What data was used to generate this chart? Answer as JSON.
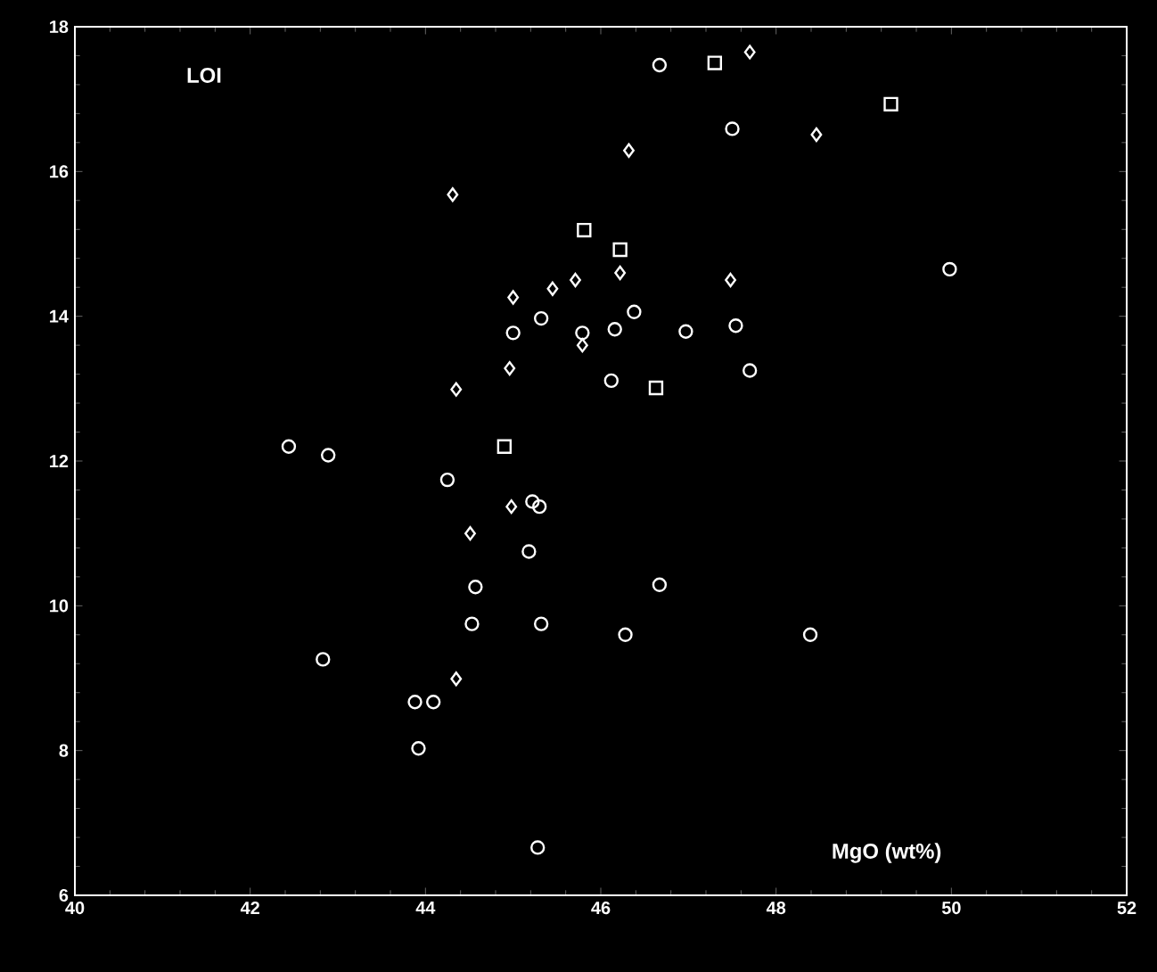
{
  "chart_data": {
    "type": "scatter",
    "xlabel": "MgO (wt%)",
    "ylabel": "LOI",
    "xlim": [
      40,
      52
    ],
    "ylim": [
      6,
      18
    ],
    "xticks": [
      40,
      42,
      44,
      46,
      48,
      50,
      52
    ],
    "yticks": [
      6,
      8,
      10,
      12,
      14,
      16,
      18
    ],
    "grid": false,
    "series": [
      {
        "color": "#ffffff",
        "marker": "circle",
        "x": [
          42.44,
          42.89,
          42.83,
          44.25,
          43.88,
          44.09,
          43.92,
          44.53,
          44.57,
          45.22,
          45.3,
          45.18,
          45.32,
          45.28,
          46.28,
          46.67,
          46.67,
          47.5,
          47.54,
          47.7,
          49.98,
          48.39,
          46.97,
          46.12,
          46.16,
          45.79,
          45.0,
          45.32,
          46.38
        ],
        "values": [
          12.2,
          12.08,
          9.26,
          11.74,
          8.67,
          8.67,
          8.03,
          9.75,
          10.26,
          11.44,
          11.37,
          10.75,
          9.75,
          6.66,
          9.6,
          10.29,
          17.47,
          16.59,
          13.87,
          13.25,
          14.65,
          9.6,
          13.79,
          13.11,
          13.82,
          13.77,
          13.77,
          13.97,
          14.06
        ]
      },
      {
        "color": "#ffffff",
        "marker": "diamond",
        "x": [
          44.31,
          44.35,
          44.96,
          44.51,
          44.35,
          44.98,
          45.71,
          45.45,
          46.22,
          47.48,
          46.32,
          47.7,
          48.46,
          45.79,
          45.0
        ],
        "values": [
          15.68,
          12.99,
          13.28,
          11.0,
          8.99,
          11.37,
          14.5,
          14.38,
          14.6,
          14.5,
          16.29,
          17.65,
          16.51,
          13.6,
          14.26
        ]
      },
      {
        "color": "#ffffff",
        "marker": "square",
        "x": [
          47.3,
          49.31,
          45.81,
          46.22,
          44.9,
          46.63
        ],
        "values": [
          17.5,
          16.93,
          15.19,
          14.92,
          12.2,
          13.01
        ]
      }
    ]
  }
}
